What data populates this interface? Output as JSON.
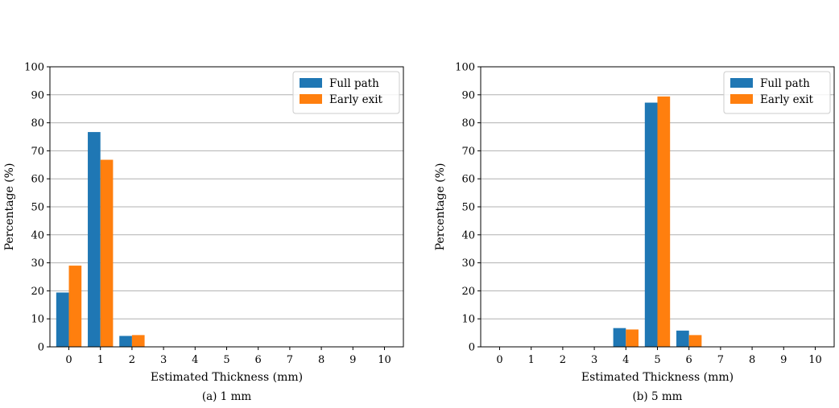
{
  "chart_data": [
    {
      "type": "bar",
      "caption": "(a) 1 mm",
      "xlabel": "Estimated Thickness (mm)",
      "ylabel": "Percentage (%)",
      "categories": [
        "0",
        "1",
        "2",
        "3",
        "4",
        "5",
        "6",
        "7",
        "8",
        "9",
        "10"
      ],
      "highlight_category": "1",
      "highlight_color": "#2ca02c",
      "ylim": [
        0,
        100
      ],
      "yticks": [
        0,
        10,
        20,
        30,
        40,
        50,
        60,
        70,
        80,
        90,
        100
      ],
      "grid": "y",
      "legend_position": "top-right",
      "series": [
        {
          "name": "Full path",
          "color": "#1f77b4",
          "values": [
            19.4,
            76.7,
            3.9,
            0,
            0,
            0,
            0,
            0,
            0,
            0,
            0
          ]
        },
        {
          "name": "Early exit",
          "color": "#ff7f0e",
          "values": [
            29.0,
            66.8,
            4.2,
            0,
            0,
            0,
            0,
            0,
            0,
            0,
            0
          ]
        }
      ]
    },
    {
      "type": "bar",
      "caption": "(b) 5 mm",
      "xlabel": "Estimated Thickness (mm)",
      "ylabel": "Percentage (%)",
      "categories": [
        "0",
        "1",
        "2",
        "3",
        "4",
        "5",
        "6",
        "7",
        "8",
        "9",
        "10"
      ],
      "highlight_category": "5",
      "highlight_color": "#2ca02c",
      "ylim": [
        0,
        100
      ],
      "yticks": [
        0,
        10,
        20,
        30,
        40,
        50,
        60,
        70,
        80,
        90,
        100
      ],
      "grid": "y",
      "legend_position": "top-right",
      "series": [
        {
          "name": "Full path",
          "color": "#1f77b4",
          "values": [
            0,
            0,
            0,
            0,
            6.7,
            87.2,
            5.8,
            0,
            0,
            0,
            0
          ]
        },
        {
          "name": "Early exit",
          "color": "#ff7f0e",
          "values": [
            0,
            0,
            0,
            0,
            6.2,
            89.4,
            4.2,
            0,
            0,
            0,
            0
          ]
        }
      ]
    }
  ]
}
